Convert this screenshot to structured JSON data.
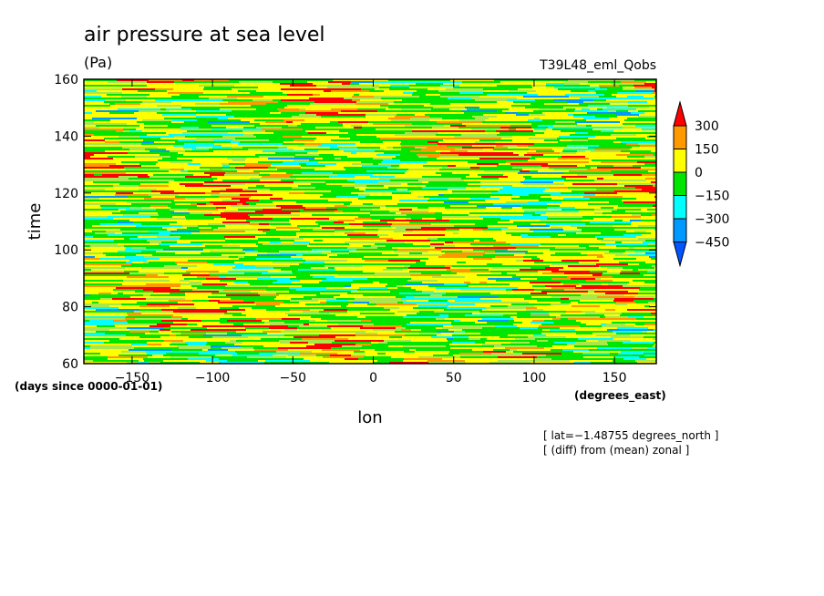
{
  "chart_data": {
    "type": "heatmap",
    "title": "air pressure at sea level",
    "units_label": "(Pa)",
    "experiment": "T39L48_eml_Qobs",
    "xlabel": "lon",
    "ylabel": "time",
    "x_units": "(degrees_east)",
    "y_units": "(days since 0000-01-01)",
    "xlim": [
      -180,
      176
    ],
    "ylim": [
      60,
      160
    ],
    "x_ticks": [
      {
        "value": -150,
        "label": "−150"
      },
      {
        "value": -100,
        "label": "−100"
      },
      {
        "value": -50,
        "label": "−50"
      },
      {
        "value": 0,
        "label": "0"
      },
      {
        "value": 50,
        "label": "50"
      },
      {
        "value": 100,
        "label": "100"
      },
      {
        "value": 150,
        "label": "150"
      }
    ],
    "y_ticks": [
      {
        "value": 60,
        "label": "60"
      },
      {
        "value": 80,
        "label": "80"
      },
      {
        "value": 100,
        "label": "100"
      },
      {
        "value": 120,
        "label": "120"
      },
      {
        "value": 140,
        "label": "140"
      },
      {
        "value": 160,
        "label": "160"
      }
    ],
    "colorbar": {
      "levels": [
        {
          "value": 300,
          "label": "300"
        },
        {
          "value": 150,
          "label": "150"
        },
        {
          "value": 0,
          "label": "0"
        },
        {
          "value": -150,
          "label": "−150"
        },
        {
          "value": -300,
          "label": "−300"
        },
        {
          "value": -450,
          "label": "−450"
        }
      ],
      "colors": [
        "#ff0000",
        "#ff9900",
        "#ffff00",
        "#00e600",
        "#00ffff",
        "#0099ff",
        "#0055ff"
      ]
    },
    "annotations": [
      "[ lat=−1.48755 degrees_north ]",
      "[ (diff) from (mean) zonal ]"
    ]
  }
}
